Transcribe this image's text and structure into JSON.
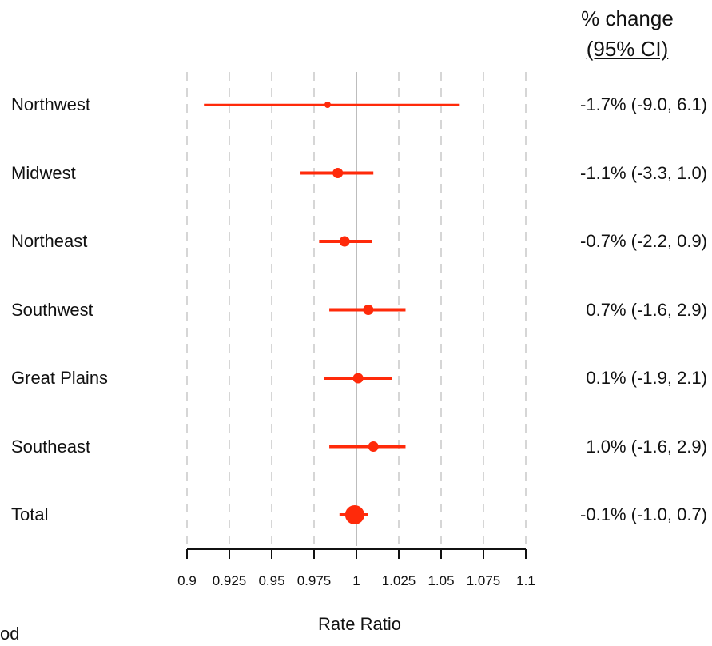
{
  "chart_data": {
    "type": "forest",
    "xlabel": "Rate Ratio",
    "xlim": [
      0.9,
      1.1
    ],
    "xticks": [
      0.9,
      0.925,
      0.95,
      0.975,
      1,
      1.025,
      1.05,
      1.075,
      1.1
    ],
    "xtick_labels": [
      "0.9",
      "0.925",
      "0.95",
      "0.975",
      "1",
      "1.025",
      "1.05",
      "1.075",
      "1.1"
    ],
    "reference_line": 1,
    "grid": "vertical dashed",
    "color": "#ff2a0a",
    "header": [
      "% change",
      "(95% CI)"
    ],
    "rows": [
      {
        "label": "Northwest",
        "estimate": 0.983,
        "lower": 0.91,
        "upper": 1.061,
        "ci_text": "-1.7% (-9.0, 6.1)"
      },
      {
        "label": "Midwest",
        "estimate": 0.989,
        "lower": 0.967,
        "upper": 1.01,
        "ci_text": "-1.1% (-3.3, 1.0)"
      },
      {
        "label": "Northeast",
        "estimate": 0.993,
        "lower": 0.978,
        "upper": 1.009,
        "ci_text": "-0.7% (-2.2, 0.9)"
      },
      {
        "label": "Southwest",
        "estimate": 1.007,
        "lower": 0.984,
        "upper": 1.029,
        "ci_text": "0.7% (-1.6, 2.9)"
      },
      {
        "label": "Great Plains",
        "estimate": 1.001,
        "lower": 0.981,
        "upper": 1.021,
        "ci_text": "0.1% (-1.9, 2.1)"
      },
      {
        "label": "Southeast",
        "estimate": 1.01,
        "lower": 0.984,
        "upper": 1.029,
        "ci_text": "1.0% (-1.6, 2.9)"
      },
      {
        "label": "Total",
        "estimate": 0.999,
        "lower": 0.99,
        "upper": 1.007,
        "ci_text": "-0.1% (-1.0, 0.7)"
      }
    ]
  },
  "cutoff_text": "od"
}
